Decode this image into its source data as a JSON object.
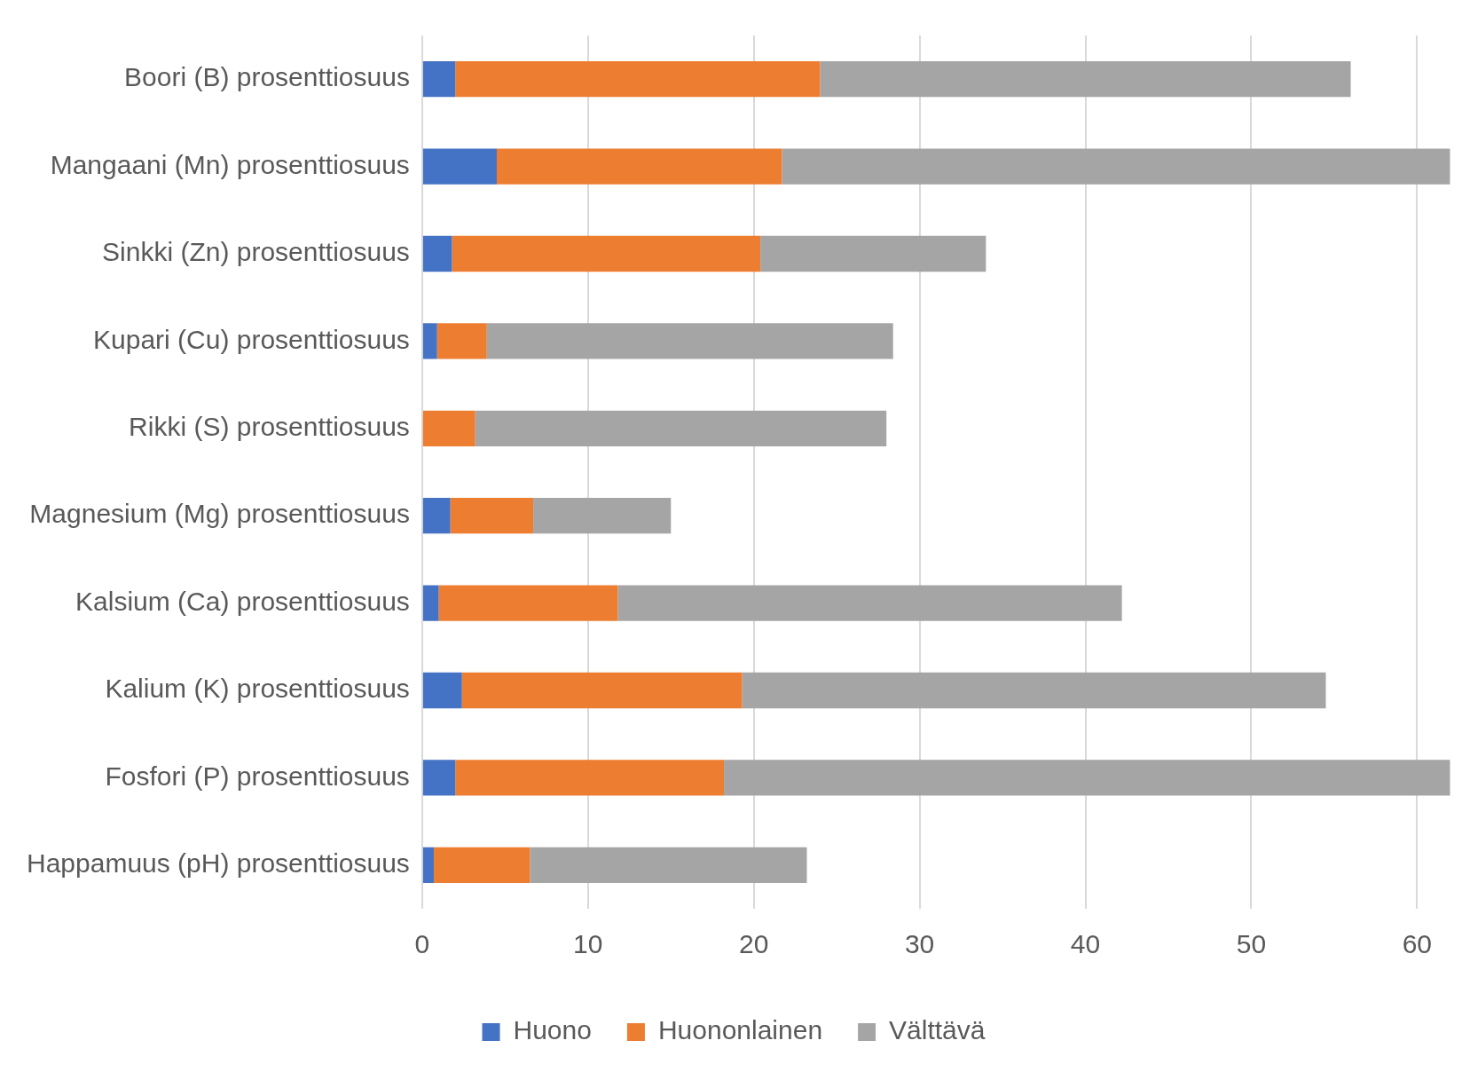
{
  "chart_data": {
    "type": "bar",
    "orientation": "horizontal",
    "stacked": true,
    "categories": [
      "Boori (B) prosenttiosuus",
      "Mangaani (Mn) prosenttiosuus",
      "Sinkki (Zn) prosenttiosuus",
      "Kupari (Cu) prosenttiosuus",
      "Rikki (S) prosenttiosuus",
      "Magnesium (Mg) prosenttiosuus",
      "Kalsium (Ca) prosenttiosuus",
      "Kalium (K) prosenttiosuus",
      "Fosfori (P) prosenttiosuus",
      "Happamuus (pH) prosenttiosuus"
    ],
    "series": [
      {
        "name": "Huono",
        "color": "#4472c4",
        "values": [
          2,
          4.5,
          1.8,
          0.9,
          0,
          1.7,
          1,
          2.4,
          2,
          0.7
        ]
      },
      {
        "name": "Huononlainen",
        "color": "#ed7d31",
        "values": [
          22,
          17.2,
          18.6,
          3,
          3.2,
          5,
          10.8,
          16.9,
          16.2,
          5.8
        ]
      },
      {
        "name": "Välttävä",
        "color": "#a5a5a5",
        "values": [
          32,
          40.3,
          13.6,
          24.5,
          24.8,
          8.3,
          30.4,
          35.2,
          43.8,
          16.7
        ]
      }
    ],
    "xlim": [
      0,
      62
    ],
    "xticks": [
      0,
      10,
      20,
      30,
      40,
      50,
      60
    ],
    "grid": "x",
    "legend": "bottom"
  }
}
